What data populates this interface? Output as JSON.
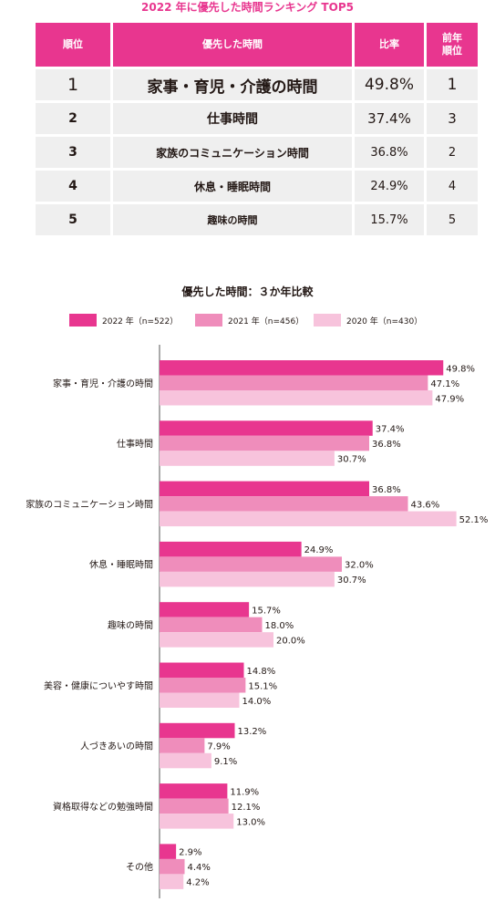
{
  "page_title": "2022 年に優先した時間ランキング TOP5",
  "ranking_table": {
    "headers": [
      "順位",
      "優先した時間",
      "比率",
      "前年\n順位"
    ],
    "rows": [
      {
        "rank": "1",
        "item": "家事・育児・介護の時間",
        "ratio": "49.8%",
        "prev_rank": "1"
      },
      {
        "rank": "2",
        "item": "仕事時間",
        "ratio": "37.4%",
        "prev_rank": "3"
      },
      {
        "rank": "3",
        "item": "家族のコミュニケーション時間",
        "ratio": "36.8%",
        "prev_rank": "2"
      },
      {
        "rank": "4",
        "item": "休息・睡眠時間",
        "ratio": "24.9%",
        "prev_rank": "4"
      },
      {
        "rank": "5",
        "item": "趣味の時間",
        "ratio": "15.7%",
        "prev_rank": "5"
      }
    ]
  },
  "colors": {
    "accent": "#e8368f",
    "rank_cell": "#f5b8d4",
    "body_cell": "#efefef",
    "series_2022": "#e8368f",
    "series_2021": "#ef8dbb",
    "series_2020": "#f7c3dc"
  },
  "chart_data": {
    "type": "bar",
    "orientation": "horizontal",
    "title": "優先した時間：３か年比較",
    "legend_position": "top",
    "xlim": [
      0,
      50
    ],
    "grid": false,
    "categories": [
      "家事・育児・介護の時間",
      "仕事時間",
      "家族のコミュニケーション時間",
      "休息・睡眠時間",
      "趣味の時間",
      "美容・健康についやす時間",
      "人づきあいの時間",
      "資格取得などの勉強時間",
      "その他"
    ],
    "series": [
      {
        "name": "2022 年（n=522）",
        "values": [
          49.8,
          37.4,
          36.8,
          24.9,
          15.7,
          14.8,
          13.2,
          11.9,
          2.9
        ]
      },
      {
        "name": "2021 年（n=456）",
        "values": [
          47.1,
          36.8,
          43.6,
          32.0,
          18.0,
          15.1,
          7.9,
          12.1,
          4.4
        ]
      },
      {
        "name": "2020 年（n=430）",
        "values": [
          47.9,
          30.7,
          52.1,
          30.7,
          20.0,
          14.0,
          9.1,
          13.0,
          4.2
        ]
      }
    ],
    "value_labels": [
      [
        "49.8%",
        "37.4%",
        "36.8%",
        "24.9%",
        "15.7%",
        "14.8%",
        "13.2%",
        "11.9%",
        "2.9%"
      ],
      [
        "47.1%",
        "36.8%",
        "43.6%",
        "32.0%",
        "18.0%",
        "15.1%",
        "7.9%",
        "12.1%",
        "4.4%"
      ],
      [
        "47.9%",
        "30.7%",
        "52.1%",
        "30.7%",
        "20.0%",
        "14.0%",
        "9.1%",
        "13.0%",
        "4.2%"
      ]
    ]
  }
}
